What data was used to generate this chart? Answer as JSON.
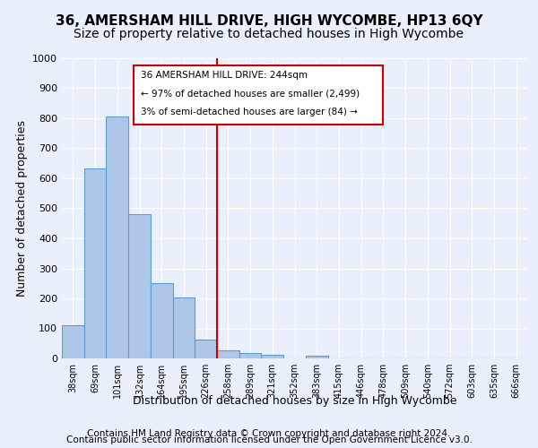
{
  "title1": "36, AMERSHAM HILL DRIVE, HIGH WYCOMBE, HP13 6QY",
  "title2": "Size of property relative to detached houses in High Wycombe",
  "xlabel": "Distribution of detached houses by size in High Wycombe",
  "ylabel": "Number of detached properties",
  "footer1": "Contains HM Land Registry data © Crown copyright and database right 2024.",
  "footer2": "Contains public sector information licensed under the Open Government Licence v3.0.",
  "annotation_line1": "36 AMERSHAM HILL DRIVE: 244sqm",
  "annotation_line2": "← 97% of detached houses are smaller (2,499)",
  "annotation_line3": "3% of semi-detached houses are larger (84) →",
  "bar_values": [
    110,
    632,
    805,
    480,
    250,
    203,
    62,
    28,
    18,
    12,
    0,
    10,
    0,
    0,
    0,
    0,
    0,
    0,
    0,
    0,
    0
  ],
  "bar_labels": [
    "38sqm",
    "69sqm",
    "101sqm",
    "132sqm",
    "164sqm",
    "195sqm",
    "226sqm",
    "258sqm",
    "289sqm",
    "321sqm",
    "352sqm",
    "383sqm",
    "415sqm",
    "446sqm",
    "478sqm",
    "509sqm",
    "540sqm",
    "572sqm",
    "603sqm",
    "635sqm",
    "666sqm"
  ],
  "bar_color": "#aec6e8",
  "bar_edge_color": "#5a9fd4",
  "vline_x_index": 6.5,
  "ylim": [
    0,
    1000
  ],
  "yticks": [
    0,
    100,
    200,
    300,
    400,
    500,
    600,
    700,
    800,
    900,
    1000
  ],
  "bg_color": "#eaf0fb",
  "plot_bg_color": "#eaf0fb",
  "annotation_box_color": "#ffffff",
  "annotation_box_edge": "#cc0000",
  "vline_color": "#cc0000",
  "title1_fontsize": 11,
  "title2_fontsize": 10,
  "xlabel_fontsize": 9,
  "ylabel_fontsize": 9,
  "footer_fontsize": 7.5
}
